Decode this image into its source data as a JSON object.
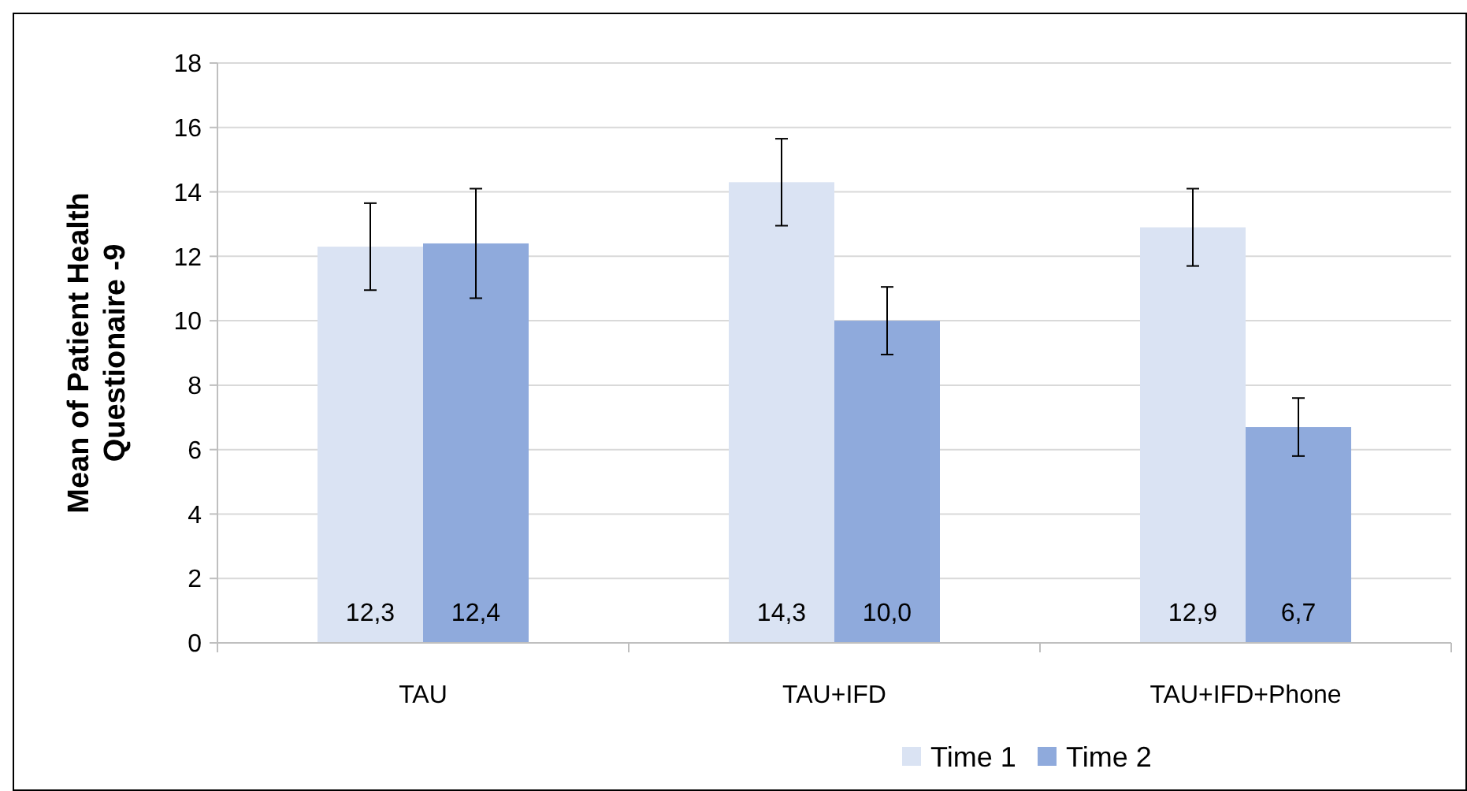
{
  "chart_data": {
    "type": "bar",
    "ylabel": "Mean of Patient Health Questionaire -9",
    "categories": [
      "TAU",
      "TAU+IFD",
      "TAU+IFD+Phone"
    ],
    "series": [
      {
        "name": "Time 1",
        "color": "#dae3f3",
        "values": [
          12.3,
          14.3,
          12.9
        ],
        "errors": [
          1.35,
          1.35,
          1.2
        ],
        "value_labels": [
          "12,3",
          "14,3",
          "12,9"
        ]
      },
      {
        "name": "Time 2",
        "color": "#8faadc",
        "values": [
          12.4,
          10.0,
          6.7
        ],
        "errors": [
          1.7,
          1.05,
          0.9
        ],
        "value_labels": [
          "12,4",
          "10,0",
          "6,7"
        ]
      }
    ],
    "ylim": [
      0,
      18
    ],
    "yticks": [
      0,
      2,
      4,
      6,
      8,
      10,
      12,
      14,
      16,
      18
    ],
    "grid": "y",
    "legend": "bottom"
  }
}
